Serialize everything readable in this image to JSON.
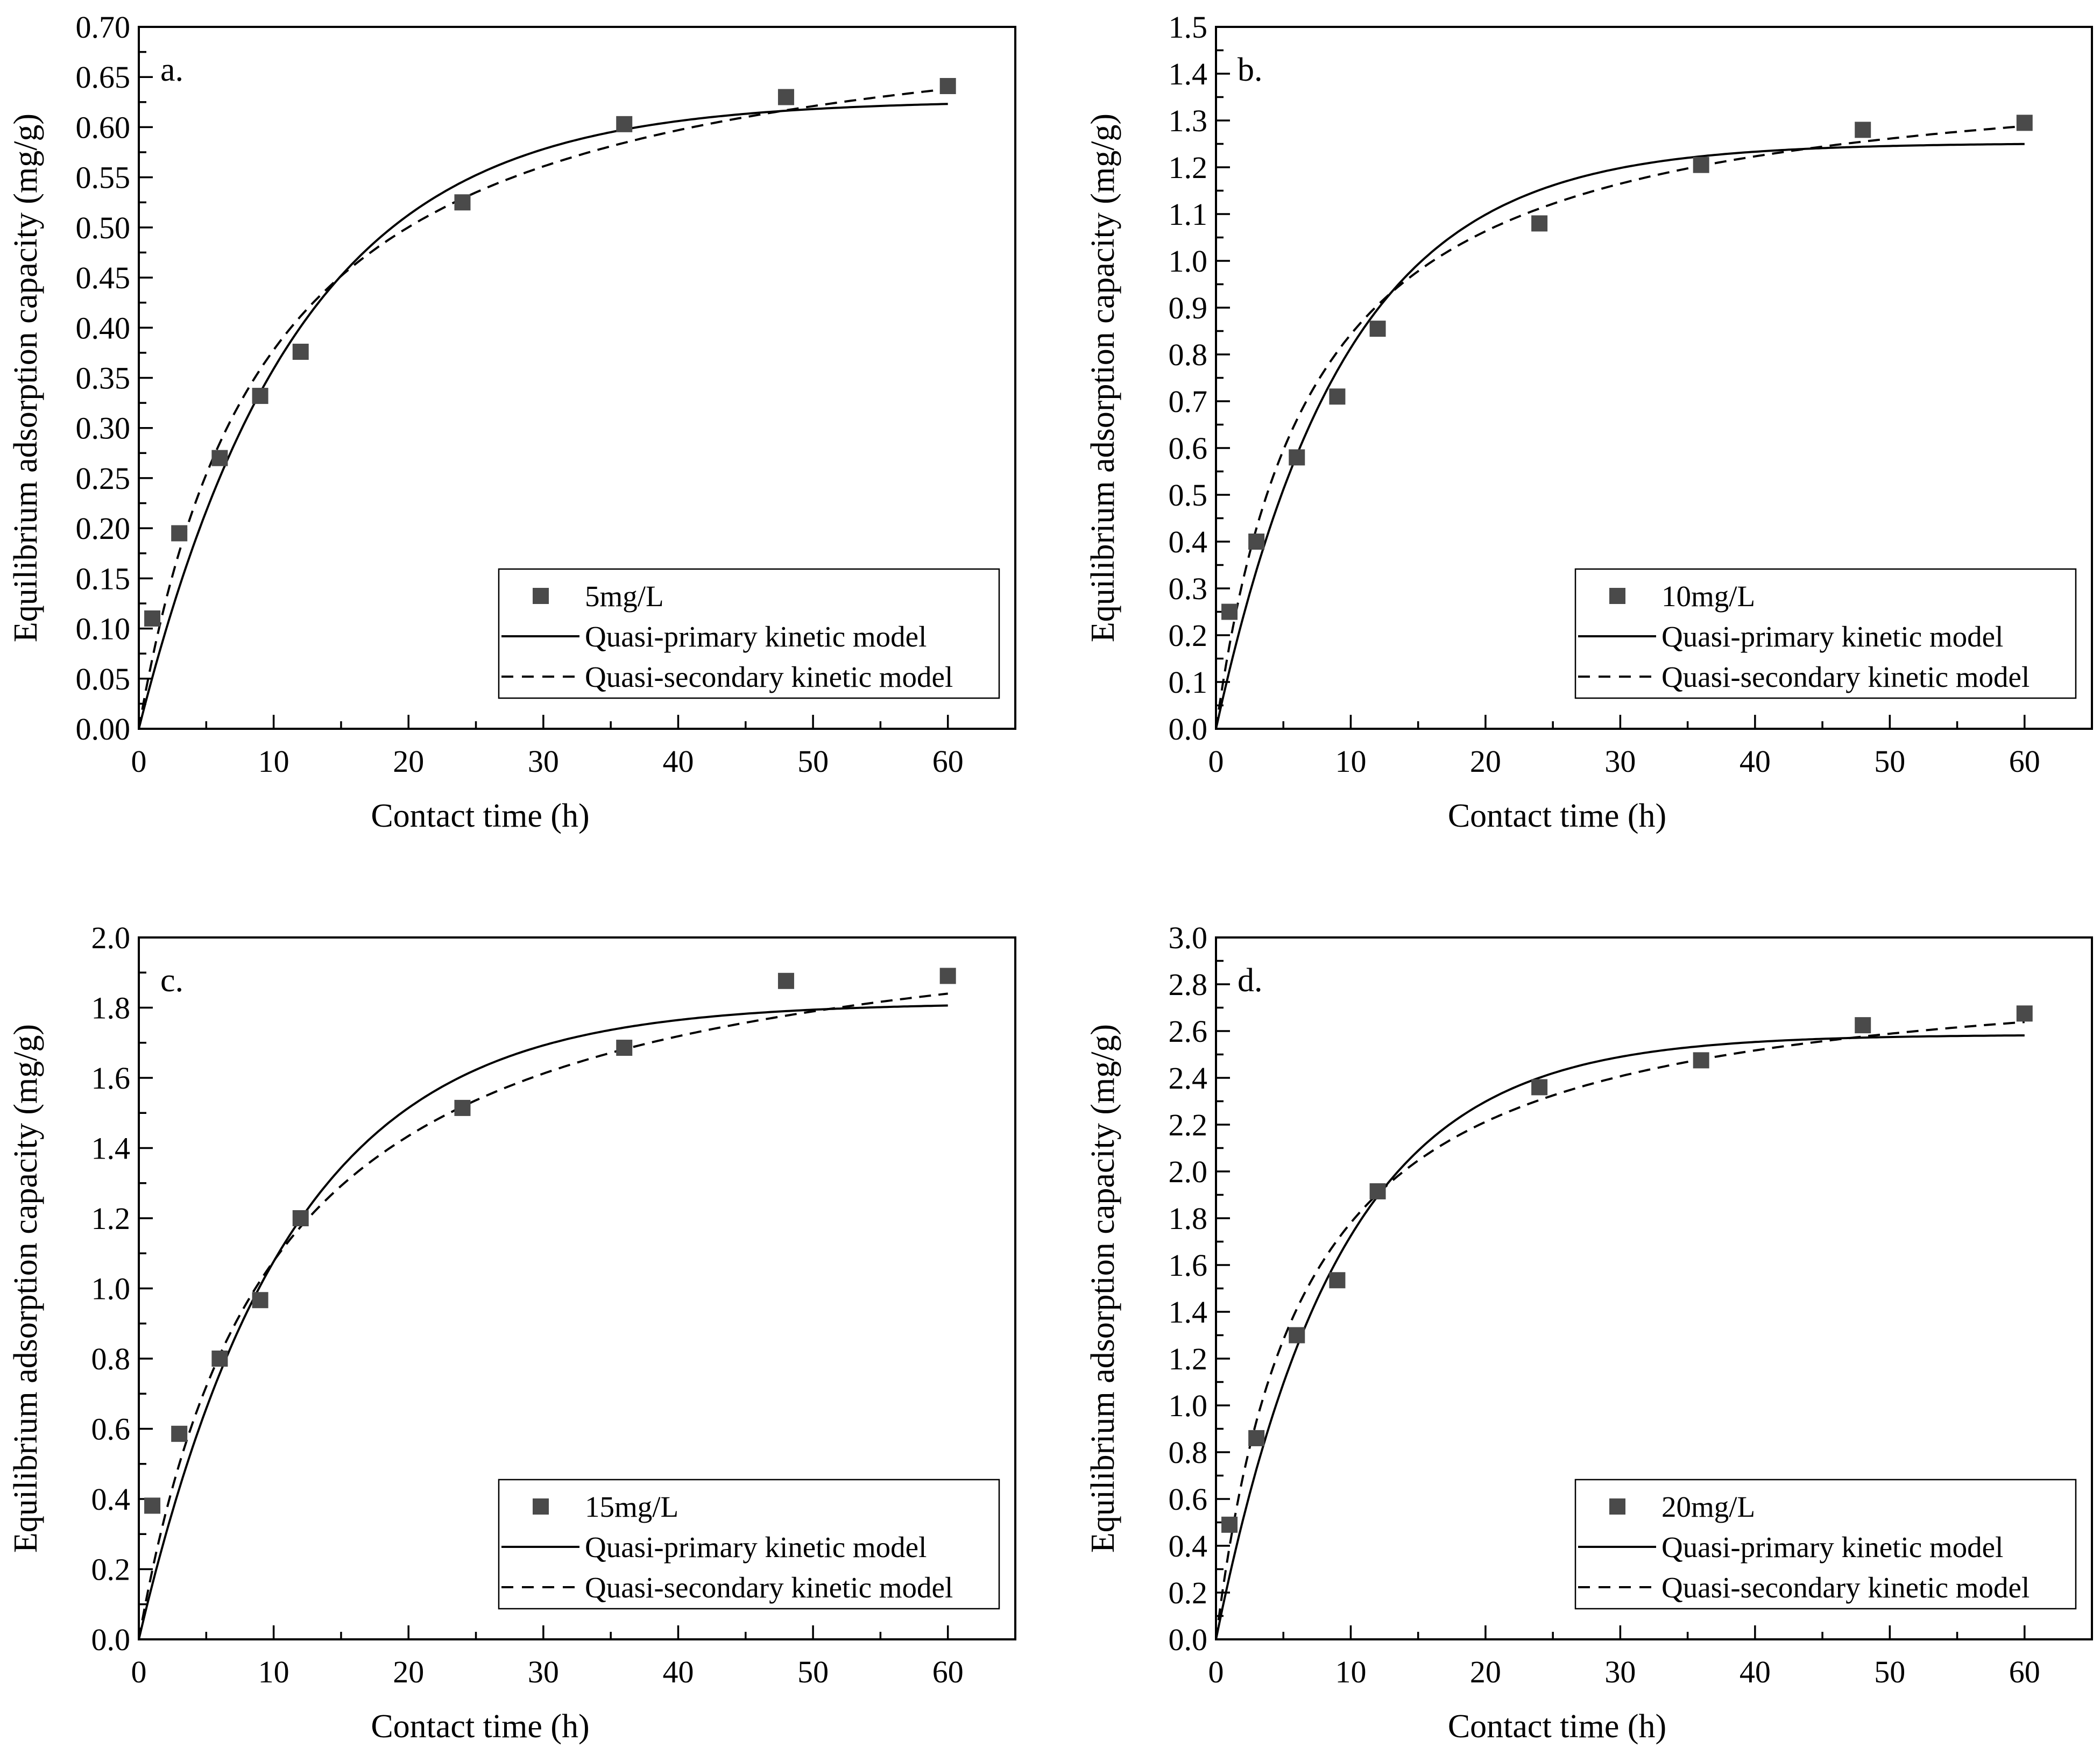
{
  "chart_data": [
    {
      "type": "scatter",
      "panel_label": "a.",
      "xlabel": "Contact time (h)",
      "ylabel": "Equilibrium adsorption capacity (mg/g)",
      "xlim": [
        0,
        65
      ],
      "ylim": [
        0,
        0.7
      ],
      "xticks": [
        0,
        10,
        20,
        30,
        40,
        50,
        60
      ],
      "yticks": [
        "0.00",
        "0.05",
        "0.10",
        "0.15",
        "0.20",
        "0.25",
        "0.30",
        "0.35",
        "0.40",
        "0.45",
        "0.50",
        "0.55",
        "0.60",
        "0.65",
        "0.70"
      ],
      "legend": {
        "position": "bottom-right",
        "entries": [
          "5mg/L",
          "Quasi-primary kinetic model",
          "Quasi-secondary kinetic model"
        ]
      },
      "series": [
        {
          "name": "5mg/L",
          "kind": "points",
          "x": [
            1,
            3,
            6,
            9,
            12,
            24,
            36,
            48,
            60
          ],
          "y": [
            0.11,
            0.195,
            0.27,
            0.332,
            0.376,
            0.525,
            0.603,
            0.63,
            0.641
          ]
        },
        {
          "name": "Quasi-primary kinetic model",
          "kind": "line",
          "style": "solid",
          "model": "pfo",
          "qe": 0.627,
          "k": 0.085
        },
        {
          "name": "Quasi-secondary kinetic model",
          "kind": "line",
          "style": "dashed",
          "model": "pso",
          "qe": 0.74,
          "k": 0.141
        }
      ]
    },
    {
      "type": "scatter",
      "panel_label": "b.",
      "xlabel": "Contact time (h)",
      "ylabel": "Equilibrium adsorption capacity (mg/g)",
      "xlim": [
        0,
        65
      ],
      "ylim": [
        0,
        1.5
      ],
      "xticks": [
        0,
        10,
        20,
        30,
        40,
        50,
        60
      ],
      "yticks": [
        "0.0",
        "0.1",
        "0.2",
        "0.3",
        "0.4",
        "0.5",
        "0.6",
        "0.7",
        "0.8",
        "0.9",
        "1.0",
        "1.1",
        "1.2",
        "1.3",
        "1.4",
        "1.5"
      ],
      "legend": {
        "position": "bottom-right",
        "entries": [
          "10mg/L",
          "Quasi-primary kinetic model",
          "Quasi-secondary kinetic model"
        ]
      },
      "series": [
        {
          "name": "10mg/L",
          "kind": "points",
          "x": [
            1,
            3,
            6,
            9,
            12,
            24,
            36,
            48,
            60
          ],
          "y": [
            0.25,
            0.4,
            0.58,
            0.71,
            0.855,
            1.08,
            1.205,
            1.28,
            1.295
          ]
        },
        {
          "name": "Quasi-primary kinetic model",
          "kind": "line",
          "style": "solid",
          "model": "pfo",
          "qe": 1.252,
          "k": 0.105
        },
        {
          "name": "Quasi-secondary kinetic model",
          "kind": "line",
          "style": "dashed",
          "model": "pso",
          "qe": 1.44,
          "k": 0.098
        }
      ]
    },
    {
      "type": "scatter",
      "panel_label": "c.",
      "xlabel": "Contact time (h)",
      "ylabel": "Equilibrium adsorption capacity (mg/g)",
      "xlim": [
        0,
        65
      ],
      "ylim": [
        0,
        2.1
      ],
      "xticks": [
        0,
        10,
        20,
        30,
        40,
        50,
        60
      ],
      "yticks": [
        "0.0",
        "0.2",
        "0.4",
        "0.6",
        "0.8",
        "1.0",
        "1.2",
        "1.4",
        "1.6",
        "1.8",
        "2.0"
      ],
      "legend": {
        "position": "bottom-right",
        "entries": [
          "15mg/L",
          "Quasi-primary kinetic model",
          "Quasi-secondary kinetic model"
        ]
      },
      "series": [
        {
          "name": "15mg/L",
          "kind": "points",
          "x": [
            1,
            3,
            6,
            9,
            12,
            24,
            36,
            48,
            60
          ],
          "y": [
            0.4,
            0.615,
            0.84,
            1.015,
            1.26,
            1.59,
            1.77,
            1.97,
            1.985
          ]
        },
        {
          "name": "Quasi-primary kinetic model",
          "kind": "line",
          "style": "solid",
          "model": "pfo",
          "qe": 1.905,
          "k": 0.09
        },
        {
          "name": "Quasi-secondary kinetic model",
          "kind": "line",
          "style": "dashed",
          "model": "pso",
          "qe": 2.25,
          "k": 0.045
        }
      ]
    },
    {
      "type": "scatter",
      "panel_label": "d.",
      "xlabel": "Contact time (h)",
      "ylabel": "Equilibrium adsorption capacity (mg/g)",
      "xlim": [
        0,
        65
      ],
      "ylim": [
        0,
        3.0
      ],
      "xticks": [
        0,
        10,
        20,
        30,
        40,
        50,
        60
      ],
      "yticks": [
        "0.0",
        "0.2",
        "0.4",
        "0.6",
        "0.8",
        "1.0",
        "1.2",
        "1.4",
        "1.6",
        "1.8",
        "2.0",
        "2.2",
        "2.4",
        "2.6",
        "2.8",
        "3.0"
      ],
      "legend": {
        "position": "bottom-right",
        "entries": [
          "20mg/L",
          "Quasi-primary kinetic model",
          "Quasi-secondary kinetic model"
        ]
      },
      "series": [
        {
          "name": "20mg/L",
          "kind": "points",
          "x": [
            1,
            3,
            6,
            9,
            12,
            24,
            36,
            48,
            60
          ],
          "y": [
            0.49,
            0.86,
            1.3,
            1.535,
            1.915,
            2.36,
            2.475,
            2.625,
            2.675
          ]
        },
        {
          "name": "Quasi-primary kinetic model",
          "kind": "line",
          "style": "solid",
          "model": "pfo",
          "qe": 2.585,
          "k": 0.11
        },
        {
          "name": "Quasi-secondary kinetic model",
          "kind": "line",
          "style": "dashed",
          "model": "pso",
          "qe": 2.92,
          "k": 0.0535
        }
      ]
    }
  ]
}
